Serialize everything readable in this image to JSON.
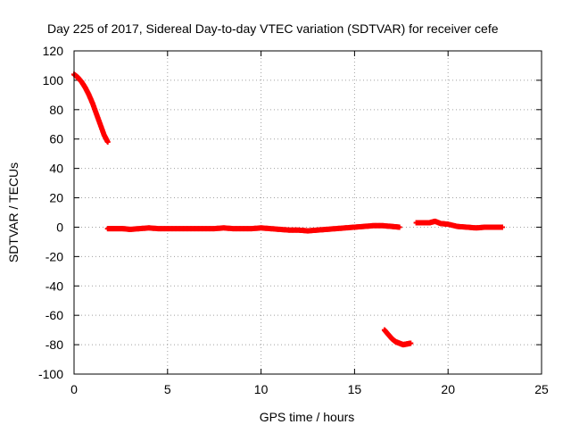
{
  "chart_data": {
    "type": "scatter",
    "title": "Day 225 of 2017, Sidereal Day-to-day VTEC variation (SDTVAR) for receiver cefe",
    "xlabel": "GPS time / hours",
    "ylabel": "SDTVAR / TECUs",
    "xlim": [
      0,
      25
    ],
    "ylim": [
      -100,
      120
    ],
    "xticks": [
      0,
      5,
      10,
      15,
      20,
      25
    ],
    "yticks": [
      -100,
      -80,
      -60,
      -40,
      -20,
      0,
      20,
      40,
      60,
      80,
      100,
      120
    ],
    "grid": true,
    "marker_color": "#ff0000",
    "grid_color": "#a0a0a0",
    "series": [
      {
        "segments": [
          [
            [
              0.0,
              104
            ],
            [
              0.2,
              102
            ],
            [
              0.4,
              99
            ],
            [
              0.6,
              95
            ],
            [
              0.8,
              90
            ],
            [
              1.0,
              84
            ],
            [
              1.2,
              77
            ],
            [
              1.4,
              70
            ],
            [
              1.6,
              63
            ],
            [
              1.8,
              58
            ]
          ],
          [
            [
              1.8,
              -1
            ],
            [
              2.2,
              -1
            ],
            [
              2.6,
              -1
            ],
            [
              3.0,
              -1.5
            ],
            [
              3.5,
              -1
            ],
            [
              4.0,
              -0.5
            ],
            [
              4.5,
              -1
            ],
            [
              5.0,
              -1
            ],
            [
              5.5,
              -1
            ],
            [
              6.0,
              -1
            ],
            [
              6.5,
              -1
            ],
            [
              7.0,
              -1
            ],
            [
              7.5,
              -1
            ],
            [
              8.0,
              -0.5
            ],
            [
              8.5,
              -1
            ],
            [
              9.0,
              -1
            ],
            [
              9.5,
              -1
            ],
            [
              10.0,
              -0.5
            ],
            [
              10.5,
              -1
            ],
            [
              11.0,
              -1.5
            ],
            [
              11.5,
              -2
            ],
            [
              12.0,
              -2
            ],
            [
              12.5,
              -2.5
            ],
            [
              13.0,
              -2
            ],
            [
              13.5,
              -1.5
            ],
            [
              14.0,
              -1
            ],
            [
              14.5,
              -0.5
            ],
            [
              15.0,
              0
            ],
            [
              15.5,
              0.5
            ],
            [
              16.0,
              1
            ],
            [
              16.5,
              1
            ],
            [
              17.0,
              0.5
            ],
            [
              17.4,
              0
            ]
          ],
          [
            [
              16.6,
              -70
            ],
            [
              16.8,
              -73
            ],
            [
              17.0,
              -76
            ],
            [
              17.2,
              -78
            ],
            [
              17.4,
              -79
            ],
            [
              17.6,
              -80
            ],
            [
              17.8,
              -79.5
            ],
            [
              18.0,
              -79
            ]
          ],
          [
            [
              18.3,
              3
            ],
            [
              18.6,
              3
            ],
            [
              19.0,
              3
            ],
            [
              19.3,
              4
            ],
            [
              19.6,
              2.5
            ],
            [
              20.0,
              2
            ],
            [
              20.5,
              0.5
            ],
            [
              21.0,
              0
            ],
            [
              21.5,
              -0.5
            ],
            [
              22.0,
              0
            ],
            [
              22.5,
              0
            ],
            [
              22.9,
              0
            ]
          ]
        ]
      }
    ]
  }
}
